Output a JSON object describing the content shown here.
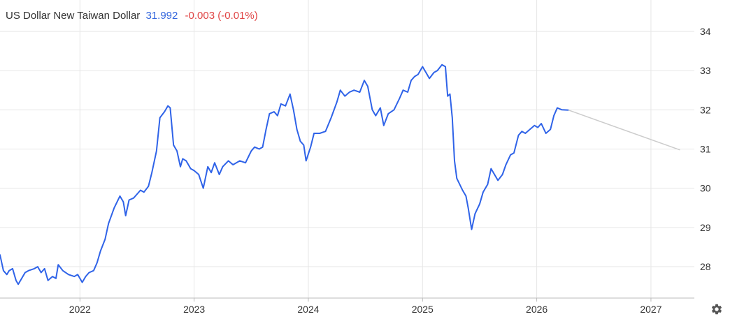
{
  "header": {
    "name": "US Dollar New Taiwan Dollar",
    "price": "31.992",
    "change": "-0.003 (-0.01%)"
  },
  "colors": {
    "line": "#2f63e8",
    "forecast": "#cccccc",
    "up": "#3366dd",
    "down": "#e04545",
    "grid": "#e6e6e6"
  },
  "icons": {
    "settings": "gear-icon"
  },
  "chart_data": {
    "type": "line",
    "title": "",
    "xlabel": "",
    "ylabel": "",
    "ylim": [
      27.2,
      34.8
    ],
    "xlim": [
      2021.3,
      2027.38
    ],
    "y_ticks": [
      28,
      29,
      30,
      31,
      32,
      33,
      34
    ],
    "x_ticks": [
      "2022",
      "2023",
      "2024",
      "2025",
      "2026",
      "2027"
    ],
    "y_axis_position": "right",
    "grid": true,
    "series": [
      {
        "role": "history",
        "points": [
          [
            2021.3,
            28.3
          ],
          [
            2021.33,
            27.9
          ],
          [
            2021.36,
            27.8
          ],
          [
            2021.38,
            27.9
          ],
          [
            2021.41,
            27.95
          ],
          [
            2021.44,
            27.65
          ],
          [
            2021.46,
            27.55
          ],
          [
            2021.49,
            27.7
          ],
          [
            2021.52,
            27.85
          ],
          [
            2021.55,
            27.9
          ],
          [
            2021.6,
            27.95
          ],
          [
            2021.63,
            28.0
          ],
          [
            2021.66,
            27.85
          ],
          [
            2021.69,
            27.95
          ],
          [
            2021.72,
            27.65
          ],
          [
            2021.76,
            27.75
          ],
          [
            2021.79,
            27.7
          ],
          [
            2021.81,
            28.05
          ],
          [
            2021.85,
            27.9
          ],
          [
            2021.9,
            27.8
          ],
          [
            2021.95,
            27.75
          ],
          [
            2021.98,
            27.8
          ],
          [
            2022.02,
            27.6
          ],
          [
            2022.05,
            27.75
          ],
          [
            2022.08,
            27.85
          ],
          [
            2022.12,
            27.9
          ],
          [
            2022.15,
            28.1
          ],
          [
            2022.18,
            28.4
          ],
          [
            2022.22,
            28.7
          ],
          [
            2022.25,
            29.1
          ],
          [
            2022.3,
            29.5
          ],
          [
            2022.35,
            29.8
          ],
          [
            2022.38,
            29.65
          ],
          [
            2022.4,
            29.3
          ],
          [
            2022.43,
            29.7
          ],
          [
            2022.47,
            29.75
          ],
          [
            2022.5,
            29.85
          ],
          [
            2022.53,
            29.95
          ],
          [
            2022.56,
            29.9
          ],
          [
            2022.6,
            30.05
          ],
          [
            2022.63,
            30.4
          ],
          [
            2022.67,
            30.95
          ],
          [
            2022.7,
            31.8
          ],
          [
            2022.74,
            31.95
          ],
          [
            2022.77,
            32.1
          ],
          [
            2022.79,
            32.05
          ],
          [
            2022.82,
            31.1
          ],
          [
            2022.85,
            30.95
          ],
          [
            2022.88,
            30.55
          ],
          [
            2022.9,
            30.75
          ],
          [
            2022.93,
            30.7
          ],
          [
            2022.97,
            30.5
          ],
          [
            2023.0,
            30.45
          ],
          [
            2023.04,
            30.35
          ],
          [
            2023.08,
            30.0
          ],
          [
            2023.12,
            30.55
          ],
          [
            2023.15,
            30.4
          ],
          [
            2023.18,
            30.65
          ],
          [
            2023.22,
            30.35
          ],
          [
            2023.25,
            30.55
          ],
          [
            2023.3,
            30.7
          ],
          [
            2023.34,
            30.6
          ],
          [
            2023.4,
            30.7
          ],
          [
            2023.45,
            30.65
          ],
          [
            2023.5,
            30.95
          ],
          [
            2023.53,
            31.05
          ],
          [
            2023.57,
            31.0
          ],
          [
            2023.6,
            31.05
          ],
          [
            2023.63,
            31.5
          ],
          [
            2023.66,
            31.9
          ],
          [
            2023.7,
            31.95
          ],
          [
            2023.73,
            31.85
          ],
          [
            2023.76,
            32.15
          ],
          [
            2023.8,
            32.1
          ],
          [
            2023.84,
            32.4
          ],
          [
            2023.87,
            32.0
          ],
          [
            2023.9,
            31.5
          ],
          [
            2023.93,
            31.2
          ],
          [
            2023.96,
            31.1
          ],
          [
            2023.98,
            30.7
          ],
          [
            2024.02,
            31.05
          ],
          [
            2024.05,
            31.4
          ],
          [
            2024.1,
            31.4
          ],
          [
            2024.15,
            31.45
          ],
          [
            2024.2,
            31.8
          ],
          [
            2024.25,
            32.2
          ],
          [
            2024.28,
            32.5
          ],
          [
            2024.32,
            32.35
          ],
          [
            2024.36,
            32.45
          ],
          [
            2024.4,
            32.5
          ],
          [
            2024.45,
            32.45
          ],
          [
            2024.49,
            32.75
          ],
          [
            2024.52,
            32.6
          ],
          [
            2024.56,
            32.0
          ],
          [
            2024.59,
            31.85
          ],
          [
            2024.63,
            32.05
          ],
          [
            2024.66,
            31.6
          ],
          [
            2024.7,
            31.9
          ],
          [
            2024.75,
            32.0
          ],
          [
            2024.8,
            32.3
          ],
          [
            2024.83,
            32.5
          ],
          [
            2024.87,
            32.45
          ],
          [
            2024.9,
            32.75
          ],
          [
            2024.93,
            32.85
          ],
          [
            2024.96,
            32.9
          ],
          [
            2025.0,
            33.1
          ],
          [
            2025.03,
            32.95
          ],
          [
            2025.06,
            32.8
          ],
          [
            2025.1,
            32.95
          ],
          [
            2025.13,
            33.0
          ],
          [
            2025.17,
            33.15
          ],
          [
            2025.2,
            33.1
          ],
          [
            2025.22,
            32.35
          ],
          [
            2025.24,
            32.4
          ],
          [
            2025.26,
            31.8
          ],
          [
            2025.28,
            30.7
          ],
          [
            2025.3,
            30.25
          ],
          [
            2025.35,
            29.95
          ],
          [
            2025.38,
            29.8
          ],
          [
            2025.4,
            29.5
          ],
          [
            2025.43,
            28.95
          ],
          [
            2025.46,
            29.35
          ],
          [
            2025.5,
            29.6
          ],
          [
            2025.53,
            29.9
          ],
          [
            2025.57,
            30.1
          ],
          [
            2025.6,
            30.5
          ],
          [
            2025.63,
            30.35
          ],
          [
            2025.66,
            30.2
          ],
          [
            2025.7,
            30.35
          ],
          [
            2025.73,
            30.6
          ],
          [
            2025.77,
            30.85
          ],
          [
            2025.8,
            30.9
          ],
          [
            2025.84,
            31.35
          ],
          [
            2025.87,
            31.45
          ],
          [
            2025.9,
            31.4
          ],
          [
            2025.94,
            31.5
          ],
          [
            2025.98,
            31.6
          ],
          [
            2026.01,
            31.55
          ],
          [
            2026.04,
            31.65
          ],
          [
            2026.08,
            31.4
          ],
          [
            2026.12,
            31.5
          ],
          [
            2026.15,
            31.85
          ],
          [
            2026.18,
            32.05
          ],
          [
            2026.22,
            32.0
          ],
          [
            2026.28,
            31.992
          ]
        ]
      },
      {
        "role": "forecast",
        "points": [
          [
            2026.28,
            31.992
          ],
          [
            2027.25,
            30.98
          ]
        ]
      }
    ]
  }
}
